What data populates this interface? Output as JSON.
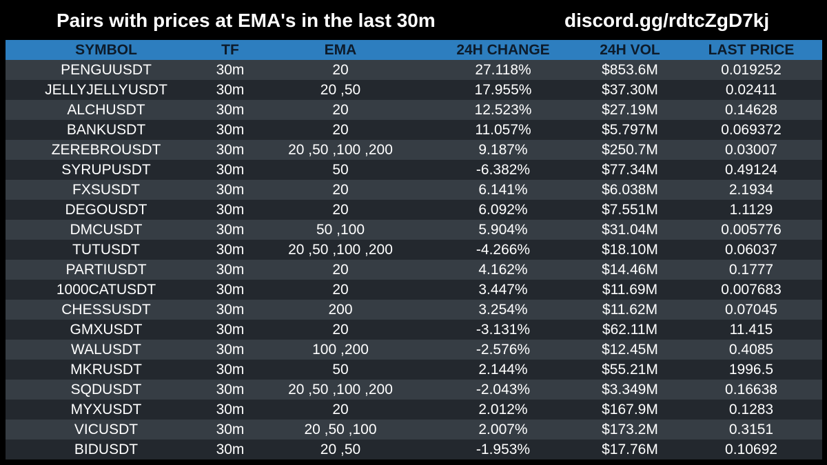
{
  "header": {
    "title": "Pairs with prices at EMA's in the last 30m",
    "link": "discord.gg/rdtcZgD7kj"
  },
  "table": {
    "columns": [
      "SYMBOL",
      "TF",
      "EMA",
      "24H CHANGE",
      "24H VOL",
      "LAST PRICE"
    ],
    "rows": [
      [
        "PENGUUSDT",
        "30m",
        "20",
        "27.118%",
        "$853.6M",
        "0.019252"
      ],
      [
        "JELLYJELLYUSDT",
        "30m",
        "20 ,50",
        "17.955%",
        "$37.30M",
        "0.02411"
      ],
      [
        "ALCHUSDT",
        "30m",
        "20",
        "12.523%",
        "$27.19M",
        "0.14628"
      ],
      [
        "BANKUSDT",
        "30m",
        "20",
        "11.057%",
        "$5.797M",
        "0.069372"
      ],
      [
        "ZEREBROUSDT",
        "30m",
        "20 ,50 ,100 ,200",
        "9.187%",
        "$250.7M",
        "0.03007"
      ],
      [
        "SYRUPUSDT",
        "30m",
        "50",
        "-6.382%",
        "$77.34M",
        "0.49124"
      ],
      [
        "FXSUSDT",
        "30m",
        "20",
        "6.141%",
        "$6.038M",
        "2.1934"
      ],
      [
        "DEGOUSDT",
        "30m",
        "20",
        "6.092%",
        "$7.551M",
        "1.1129"
      ],
      [
        "DMCUSDT",
        "30m",
        "50 ,100",
        "5.904%",
        "$31.04M",
        "0.005776"
      ],
      [
        "TUTUSDT",
        "30m",
        "20 ,50 ,100 ,200",
        "-4.266%",
        "$18.10M",
        "0.06037"
      ],
      [
        "PARTIUSDT",
        "30m",
        "20",
        "4.162%",
        "$14.46M",
        "0.1777"
      ],
      [
        "1000CATUSDT",
        "30m",
        "20",
        "3.447%",
        "$11.69M",
        "0.007683"
      ],
      [
        "CHESSUSDT",
        "30m",
        "200",
        "3.254%",
        "$11.62M",
        "0.07045"
      ],
      [
        "GMXUSDT",
        "30m",
        "20",
        "-3.131%",
        "$62.11M",
        "11.415"
      ],
      [
        "WALUSDT",
        "30m",
        "100 ,200",
        "-2.576%",
        "$12.45M",
        "0.4085"
      ],
      [
        "MKRUSDT",
        "30m",
        "50",
        "2.144%",
        "$55.21M",
        "1996.5"
      ],
      [
        "SQDUSDT",
        "30m",
        "20 ,50 ,100 ,200",
        "-2.043%",
        "$3.349M",
        "0.16638"
      ],
      [
        "MYXUSDT",
        "30m",
        "20",
        "2.012%",
        "$167.9M",
        "0.1283"
      ],
      [
        "VICUSDT",
        "30m",
        "20 ,50 ,100",
        "2.007%",
        "$173.2M",
        "0.3151"
      ],
      [
        "BIDUSDT",
        "30m",
        "20 ,50",
        "-1.953%",
        "$17.76M",
        "0.10692"
      ]
    ]
  },
  "colors": {
    "background": "#000000",
    "header_bar": "#2d7ebf",
    "row_odd": "#363d44",
    "row_even": "#23282e"
  }
}
